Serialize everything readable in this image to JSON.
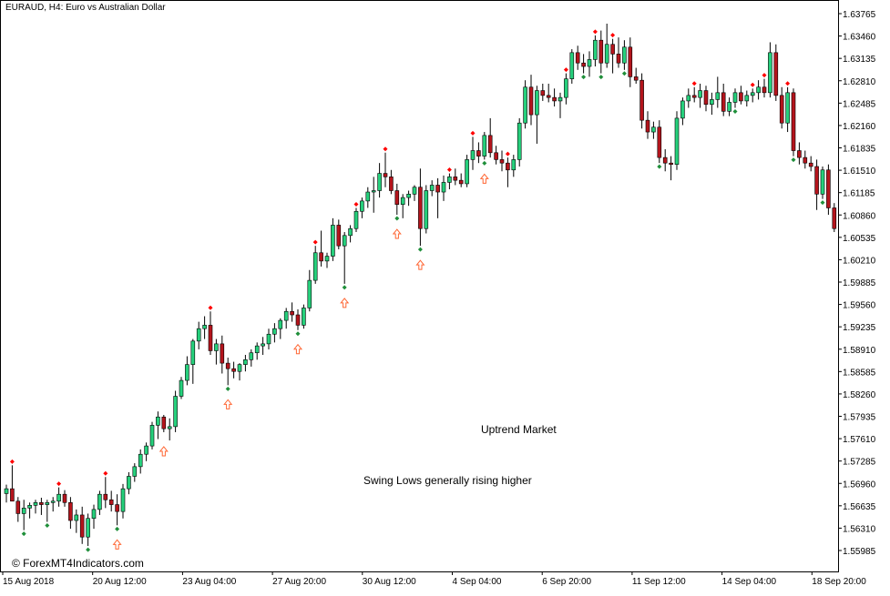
{
  "header": {
    "symbol_title": "EURAUD, H4:  Euro vs Australian Dollar"
  },
  "annotations": {
    "trend_label": "Uptrend Market",
    "swing_note": "Swing Lows generally rising higher"
  },
  "watermark": "© ForexMT4Indicators.com",
  "colors": {
    "bull": "#26d07c",
    "bear": "#b4141c",
    "swing_high": "#ff0000",
    "swing_low": "#1f8f3a",
    "arrow": "#ff6633",
    "axis": "#000000"
  },
  "chart_data": {
    "type": "candlestick",
    "title": "EURAUD, H4:  Euro vs Australian Dollar",
    "ylim": [
      1.5544,
      1.6397
    ],
    "y_ticks": [
      "1.63765",
      "1.63460",
      "1.63135",
      "1.62810",
      "1.62485",
      "1.62160",
      "1.61835",
      "1.61510",
      "1.61185",
      "1.60860",
      "1.60535",
      "1.60210",
      "1.59885",
      "1.59560",
      "1.59235",
      "1.58910",
      "1.58585",
      "1.58260",
      "1.57935",
      "1.57610",
      "1.57285",
      "1.56960",
      "1.56635",
      "1.56310",
      "1.55985"
    ],
    "x_ticks": [
      "15 Aug 2018",
      "20 Aug 12:00",
      "23 Aug 04:00",
      "27 Aug 20:00",
      "30 Aug 12:00",
      "4 Sep 04:00",
      "6 Sep 20:00",
      "11 Sep 12:00",
      "14 Sep 04:00",
      "18 Sep 20:00"
    ],
    "candles": [
      [
        1.5681,
        1.5694,
        1.5668,
        1.5688
      ],
      [
        1.5688,
        1.5722,
        1.5677,
        1.567
      ],
      [
        1.567,
        1.5676,
        1.564,
        1.5652
      ],
      [
        1.5652,
        1.5672,
        1.5628,
        1.566
      ],
      [
        1.566,
        1.5668,
        1.5645,
        1.5664
      ],
      [
        1.5664,
        1.5672,
        1.5652,
        1.5668
      ],
      [
        1.5668,
        1.5675,
        1.565,
        1.5665
      ],
      [
        1.5665,
        1.5672,
        1.564,
        1.5668
      ],
      [
        1.5668,
        1.5676,
        1.5655,
        1.567
      ],
      [
        1.567,
        1.569,
        1.5662,
        1.568
      ],
      [
        1.568,
        1.5686,
        1.5662,
        1.5668
      ],
      [
        1.5668,
        1.5676,
        1.563,
        1.5642
      ],
      [
        1.5642,
        1.5658,
        1.5624,
        1.565
      ],
      [
        1.565,
        1.5662,
        1.5608,
        1.5618
      ],
      [
        1.5618,
        1.5652,
        1.5605,
        1.5645
      ],
      [
        1.5645,
        1.5665,
        1.563,
        1.5658
      ],
      [
        1.5658,
        1.5685,
        1.565,
        1.568
      ],
      [
        1.568,
        1.5705,
        1.566,
        1.5672
      ],
      [
        1.5672,
        1.5685,
        1.5655,
        1.5665
      ],
      [
        1.5665,
        1.568,
        1.5635,
        1.5655
      ],
      [
        1.5655,
        1.5695,
        1.5645,
        1.5688
      ],
      [
        1.5688,
        1.5712,
        1.568,
        1.5706
      ],
      [
        1.5706,
        1.5725,
        1.5698,
        1.572
      ],
      [
        1.572,
        1.5745,
        1.571,
        1.5738
      ],
      [
        1.5738,
        1.5755,
        1.5728,
        1.575
      ],
      [
        1.575,
        1.5785,
        1.5745,
        1.578
      ],
      [
        1.578,
        1.58,
        1.576,
        1.5792
      ],
      [
        1.5792,
        1.5795,
        1.577,
        1.5775
      ],
      [
        1.5775,
        1.579,
        1.5758,
        1.5778
      ],
      [
        1.5778,
        1.583,
        1.577,
        1.5822
      ],
      [
        1.5822,
        1.585,
        1.5818,
        1.5845
      ],
      [
        1.5845,
        1.588,
        1.5838,
        1.5868
      ],
      [
        1.5868,
        1.5905,
        1.584,
        1.5902
      ],
      [
        1.5902,
        1.593,
        1.589,
        1.592
      ],
      [
        1.592,
        1.5938,
        1.5905,
        1.5925
      ],
      [
        1.5925,
        1.5945,
        1.5882,
        1.5888
      ],
      [
        1.5888,
        1.5905,
        1.5868,
        1.5898
      ],
      [
        1.5898,
        1.591,
        1.5855,
        1.587
      ],
      [
        1.587,
        1.5878,
        1.5838,
        1.5862
      ],
      [
        1.5862,
        1.5872,
        1.5848,
        1.5858
      ],
      [
        1.5858,
        1.587,
        1.5845,
        1.5868
      ],
      [
        1.5868,
        1.5882,
        1.5858,
        1.5875
      ],
      [
        1.5875,
        1.589,
        1.5865,
        1.5885
      ],
      [
        1.5885,
        1.59,
        1.5875,
        1.5895
      ],
      [
        1.5895,
        1.5908,
        1.5882,
        1.5898
      ],
      [
        1.5898,
        1.592,
        1.589,
        1.5912
      ],
      [
        1.5912,
        1.5928,
        1.59,
        1.592
      ],
      [
        1.592,
        1.5935,
        1.5905,
        1.5932
      ],
      [
        1.5932,
        1.595,
        1.592,
        1.5945
      ],
      [
        1.5945,
        1.5958,
        1.593,
        1.594
      ],
      [
        1.594,
        1.5948,
        1.5918,
        1.5925
      ],
      [
        1.5925,
        1.5955,
        1.592,
        1.595
      ],
      [
        1.595,
        1.6005,
        1.5945,
        1.599
      ],
      [
        1.599,
        1.604,
        1.5985,
        1.603
      ],
      [
        1.603,
        1.6062,
        1.601,
        1.6018
      ],
      [
        1.6018,
        1.603,
        1.6008,
        1.6025
      ],
      [
        1.6025,
        1.608,
        1.6018,
        1.607
      ],
      [
        1.607,
        1.6078,
        1.6035,
        1.604
      ],
      [
        1.604,
        1.606,
        1.5985,
        1.6055
      ],
      [
        1.6055,
        1.607,
        1.6045,
        1.6065
      ],
      [
        1.6065,
        1.6095,
        1.606,
        1.609
      ],
      [
        1.609,
        1.611,
        1.608,
        1.6105
      ],
      [
        1.6105,
        1.6125,
        1.6095,
        1.6118
      ],
      [
        1.6118,
        1.614,
        1.6088,
        1.612
      ],
      [
        1.612,
        1.616,
        1.611,
        1.6145
      ],
      [
        1.6145,
        1.6175,
        1.6125,
        1.614
      ],
      [
        1.614,
        1.615,
        1.6115,
        1.612
      ],
      [
        1.612,
        1.613,
        1.6085,
        1.61
      ],
      [
        1.61,
        1.6115,
        1.608,
        1.611
      ],
      [
        1.611,
        1.612,
        1.6098,
        1.6115
      ],
      [
        1.6115,
        1.6128,
        1.6105,
        1.6125
      ],
      [
        1.6125,
        1.6152,
        1.604,
        1.6065
      ],
      [
        1.6065,
        1.6128,
        1.6058,
        1.612
      ],
      [
        1.612,
        1.6135,
        1.6112,
        1.6128
      ],
      [
        1.6128,
        1.6138,
        1.608,
        1.6118
      ],
      [
        1.6118,
        1.6142,
        1.6105,
        1.6132
      ],
      [
        1.6132,
        1.6145,
        1.6122,
        1.614
      ],
      [
        1.614,
        1.6152,
        1.6128,
        1.6135
      ],
      [
        1.6135,
        1.6145,
        1.6125,
        1.613
      ],
      [
        1.613,
        1.6172,
        1.6125,
        1.6165
      ],
      [
        1.6165,
        1.6198,
        1.615,
        1.6178
      ],
      [
        1.6178,
        1.619,
        1.616,
        1.617
      ],
      [
        1.617,
        1.6205,
        1.6165,
        1.62
      ],
      [
        1.62,
        1.6225,
        1.6168,
        1.6175
      ],
      [
        1.6175,
        1.6185,
        1.6158,
        1.6165
      ],
      [
        1.6165,
        1.6178,
        1.6148,
        1.616
      ],
      [
        1.616,
        1.6168,
        1.6125,
        1.615
      ],
      [
        1.615,
        1.6172,
        1.614,
        1.6165
      ],
      [
        1.6165,
        1.6225,
        1.6155,
        1.6218
      ],
      [
        1.6218,
        1.628,
        1.621,
        1.627
      ],
      [
        1.627,
        1.6288,
        1.6215,
        1.623
      ],
      [
        1.623,
        1.6272,
        1.6188,
        1.6265
      ],
      [
        1.6265,
        1.6275,
        1.625,
        1.6258
      ],
      [
        1.6258,
        1.6275,
        1.6248,
        1.6255
      ],
      [
        1.6255,
        1.6268,
        1.6242,
        1.625
      ],
      [
        1.625,
        1.6262,
        1.6225,
        1.6255
      ],
      [
        1.6255,
        1.629,
        1.6245,
        1.6282
      ],
      [
        1.6282,
        1.6325,
        1.6275,
        1.632
      ],
      [
        1.632,
        1.633,
        1.6295,
        1.6305
      ],
      [
        1.6305,
        1.6318,
        1.629,
        1.63
      ],
      [
        1.63,
        1.6322,
        1.6285,
        1.631
      ],
      [
        1.631,
        1.6345,
        1.63,
        1.6338
      ],
      [
        1.6338,
        1.6352,
        1.629,
        1.6305
      ],
      [
        1.6305,
        1.6362,
        1.6298,
        1.6332
      ],
      [
        1.6332,
        1.634,
        1.629,
        1.6318
      ],
      [
        1.6318,
        1.6342,
        1.6298,
        1.6305
      ],
      [
        1.6305,
        1.6338,
        1.6295,
        1.6328
      ],
      [
        1.6328,
        1.6342,
        1.627,
        1.6285
      ],
      [
        1.6285,
        1.6298,
        1.6275,
        1.628
      ],
      [
        1.628,
        1.629,
        1.621,
        1.6222
      ],
      [
        1.6222,
        1.6235,
        1.6195,
        1.6205
      ],
      [
        1.6205,
        1.622,
        1.6195,
        1.6212
      ],
      [
        1.6212,
        1.6222,
        1.616,
        1.6168
      ],
      [
        1.6168,
        1.618,
        1.6148,
        1.616
      ],
      [
        1.616,
        1.617,
        1.6135,
        1.6158
      ],
      [
        1.6158,
        1.6235,
        1.615,
        1.6225
      ],
      [
        1.6225,
        1.6255,
        1.6215,
        1.625
      ],
      [
        1.625,
        1.6268,
        1.624,
        1.6258
      ],
      [
        1.6258,
        1.627,
        1.6248,
        1.6255
      ],
      [
        1.6255,
        1.6275,
        1.624,
        1.6265
      ],
      [
        1.6265,
        1.6272,
        1.6235,
        1.6245
      ],
      [
        1.6245,
        1.6262,
        1.623,
        1.6252
      ],
      [
        1.6252,
        1.6285,
        1.624,
        1.6262
      ],
      [
        1.6262,
        1.6275,
        1.6228,
        1.6235
      ],
      [
        1.6235,
        1.6255,
        1.6228,
        1.6248
      ],
      [
        1.6248,
        1.6268,
        1.624,
        1.6262
      ],
      [
        1.6262,
        1.6272,
        1.6245,
        1.625
      ],
      [
        1.625,
        1.6265,
        1.6242,
        1.6258
      ],
      [
        1.6258,
        1.6268,
        1.6248,
        1.6262
      ],
      [
        1.6262,
        1.628,
        1.6252,
        1.627
      ],
      [
        1.627,
        1.6282,
        1.6255,
        1.6262
      ],
      [
        1.6262,
        1.6335,
        1.6255,
        1.632
      ],
      [
        1.632,
        1.6332,
        1.625,
        1.6258
      ],
      [
        1.6258,
        1.627,
        1.621,
        1.6218
      ],
      [
        1.6218,
        1.627,
        1.6205,
        1.6262
      ],
      [
        1.6262,
        1.6268,
        1.617,
        1.6178
      ],
      [
        1.6178,
        1.619,
        1.6158,
        1.6168
      ],
      [
        1.6168,
        1.6178,
        1.6152,
        1.616
      ],
      [
        1.616,
        1.617,
        1.6148,
        1.6155
      ],
      [
        1.6155,
        1.6165,
        1.6092,
        1.6115
      ],
      [
        1.6115,
        1.6155,
        1.6108,
        1.615
      ],
      [
        1.615,
        1.6158,
        1.6085,
        1.6095
      ],
      [
        1.6095,
        1.6102,
        1.606,
        1.6065
      ]
    ],
    "swing_highs": [
      1,
      9,
      17,
      35,
      53,
      60,
      65,
      76,
      80,
      86,
      96,
      101,
      104,
      118,
      128,
      130,
      134
    ],
    "swing_lows": [
      3,
      7,
      14,
      19,
      38,
      50,
      58,
      67,
      71,
      82,
      99,
      102,
      106,
      112,
      125,
      135,
      140
    ],
    "up_arrows": [
      19,
      27,
      38,
      50,
      58,
      67,
      71,
      82
    ],
    "grid": false
  }
}
